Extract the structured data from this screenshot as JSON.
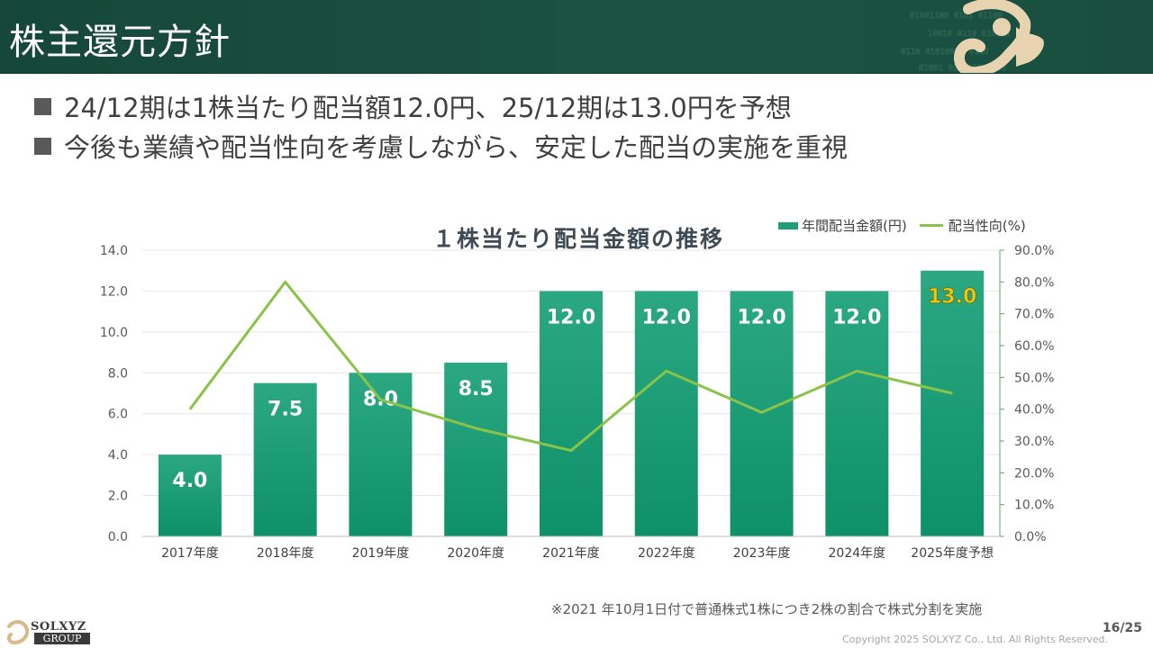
{
  "header": {
    "title": "株主還元方針"
  },
  "bullets": [
    "24/12期は1株当たり配当額12.0円、25/12期は13.0円を予想",
    "今後も業績や配当性向を考慮しながら、安定した配当の実施を重視"
  ],
  "chart_data": {
    "type": "bar",
    "title": "１株当たり配当金額の推移",
    "categories": [
      "2017年度",
      "2018年度",
      "2019年度",
      "2020年度",
      "2021年度",
      "2022年度",
      "2023年度",
      "2024年度",
      "2025年度予想"
    ],
    "series": [
      {
        "name": "年間配当金額(円)",
        "type": "bar",
        "axis": "left",
        "values": [
          4.0,
          7.5,
          8.0,
          8.5,
          12.0,
          12.0,
          12.0,
          12.0,
          13.0
        ],
        "labels": [
          "4.0",
          "7.5",
          "8.0",
          "8.5",
          "12.0",
          "12.0",
          "12.0",
          "12.0",
          "13.0"
        ]
      },
      {
        "name": "配当性向(%)",
        "type": "line",
        "axis": "right",
        "values": [
          40.0,
          80.0,
          43.0,
          34.0,
          27.0,
          52.0,
          39.0,
          52.0,
          45.0
        ]
      }
    ],
    "y_left": {
      "lim": [
        0,
        14
      ],
      "ticks": [
        "0.0",
        "2.0",
        "4.0",
        "6.0",
        "8.0",
        "10.0",
        "12.0",
        "14.0"
      ]
    },
    "y_right": {
      "lim": [
        0,
        90
      ],
      "ticks": [
        "0.0%",
        "10.0%",
        "20.0%",
        "30.0%",
        "40.0%",
        "50.0%",
        "60.0%",
        "70.0%",
        "80.0%",
        "90.0%"
      ]
    },
    "grid": true,
    "legend": "top-right",
    "colors": {
      "bar": "#1f9e78",
      "line": "#8bc34a",
      "label": "#ffffff",
      "forecast_label": "#f2c80f"
    }
  },
  "footnote": "※2021 年10月1日付で普通株式1株につき2株の割合で株式分割を実施",
  "page_number": "16/25",
  "copyright": "Copyright  2025 SOLXYZ Co., Ltd. All Rights Reserved.",
  "logo": {
    "name": "SOLXYZ",
    "sub": "GROUP"
  }
}
